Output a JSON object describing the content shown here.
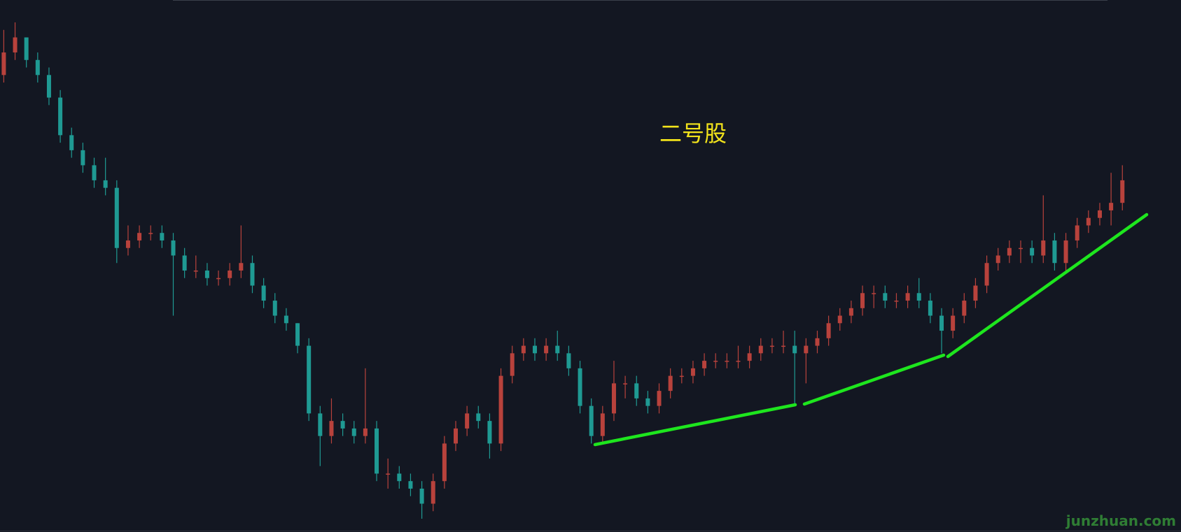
{
  "chart_data": {
    "type": "candlestick",
    "title": "二号股",
    "up_color": "#b8423c",
    "down_color": "#1f9a93",
    "ohlc": [
      [
        70,
        76,
        69,
        73
      ],
      [
        73,
        77,
        72,
        75
      ],
      [
        75,
        75,
        71,
        72
      ],
      [
        72,
        73,
        69,
        70
      ],
      [
        70,
        71,
        66,
        67
      ],
      [
        67,
        68,
        61,
        62
      ],
      [
        62,
        63,
        59,
        60
      ],
      [
        60,
        61,
        57,
        58
      ],
      [
        58,
        59,
        55,
        56
      ],
      [
        56,
        59,
        54,
        55
      ],
      [
        55,
        56,
        45,
        47
      ],
      [
        47,
        50,
        46,
        48
      ],
      [
        48,
        50,
        47,
        49
      ],
      [
        49,
        50,
        48,
        49
      ],
      [
        49,
        50,
        47,
        48
      ],
      [
        48,
        49,
        38,
        46
      ],
      [
        46,
        47,
        43,
        44
      ],
      [
        44,
        46,
        43,
        44
      ],
      [
        44,
        45,
        42,
        43
      ],
      [
        43,
        44,
        42,
        43
      ],
      [
        43,
        45,
        42,
        44
      ],
      [
        44,
        50,
        43,
        45
      ],
      [
        45,
        46,
        41,
        42
      ],
      [
        42,
        43,
        39,
        40
      ],
      [
        40,
        41,
        37,
        38
      ],
      [
        38,
        39,
        36,
        37
      ],
      [
        37,
        37,
        33,
        34
      ],
      [
        34,
        35,
        24,
        25
      ],
      [
        25,
        26,
        18,
        22
      ],
      [
        22,
        27,
        21,
        24
      ],
      [
        24,
        25,
        22,
        23
      ],
      [
        23,
        24,
        21,
        22
      ],
      [
        22,
        31,
        21,
        23
      ],
      [
        23,
        24,
        16,
        17
      ],
      [
        17,
        19,
        15,
        17
      ],
      [
        17,
        18,
        15,
        16
      ],
      [
        16,
        17,
        14,
        15
      ],
      [
        15,
        16,
        11,
        13
      ],
      [
        13,
        17,
        12,
        16
      ],
      [
        16,
        22,
        15,
        21
      ],
      [
        21,
        24,
        20,
        23
      ],
      [
        23,
        26,
        22,
        25
      ],
      [
        25,
        26,
        23,
        24
      ],
      [
        24,
        25,
        19,
        21
      ],
      [
        21,
        31,
        20,
        30
      ],
      [
        30,
        34,
        29,
        33
      ],
      [
        33,
        35,
        32,
        34
      ],
      [
        34,
        35,
        32,
        33
      ],
      [
        33,
        35,
        32,
        34
      ],
      [
        34,
        36,
        32,
        33
      ],
      [
        33,
        34,
        30,
        31
      ],
      [
        31,
        32,
        25,
        26
      ],
      [
        26,
        27,
        21,
        22
      ],
      [
        22,
        26,
        21,
        25
      ],
      [
        25,
        32,
        24,
        29
      ],
      [
        29,
        30,
        27,
        29
      ],
      [
        29,
        30,
        26,
        27
      ],
      [
        27,
        28,
        25,
        26
      ],
      [
        26,
        29,
        25,
        28
      ],
      [
        28,
        31,
        27,
        30
      ],
      [
        30,
        31,
        29,
        30
      ],
      [
        30,
        32,
        29,
        31
      ],
      [
        31,
        33,
        30,
        32
      ],
      [
        32,
        33,
        31,
        32
      ],
      [
        32,
        33,
        31,
        32
      ],
      [
        32,
        34,
        31,
        32
      ],
      [
        32,
        34,
        31,
        33
      ],
      [
        33,
        35,
        32,
        34
      ],
      [
        34,
        35,
        33,
        34
      ],
      [
        34,
        36,
        33,
        34
      ],
      [
        34,
        36,
        26,
        33
      ],
      [
        33,
        35,
        29,
        34
      ],
      [
        34,
        36,
        33,
        35
      ],
      [
        35,
        38,
        34,
        37
      ],
      [
        37,
        39,
        36,
        38
      ],
      [
        38,
        40,
        37,
        39
      ],
      [
        39,
        42,
        38,
        41
      ],
      [
        41,
        42,
        39,
        41
      ],
      [
        41,
        42,
        39,
        40
      ],
      [
        40,
        41,
        39,
        40
      ],
      [
        40,
        42,
        39,
        41
      ],
      [
        41,
        43,
        39,
        40
      ],
      [
        40,
        41,
        37,
        38
      ],
      [
        38,
        39,
        33,
        36
      ],
      [
        36,
        39,
        35,
        38
      ],
      [
        38,
        41,
        37,
        40
      ],
      [
        40,
        43,
        39,
        42
      ],
      [
        42,
        46,
        41,
        45
      ],
      [
        45,
        47,
        44,
        46
      ],
      [
        46,
        48,
        45,
        47
      ],
      [
        47,
        48,
        45,
        47
      ],
      [
        47,
        48,
        45,
        46
      ],
      [
        46,
        54,
        45,
        48
      ],
      [
        48,
        49,
        44,
        45
      ],
      [
        45,
        49,
        44,
        48
      ],
      [
        48,
        51,
        47,
        50
      ],
      [
        50,
        52,
        49,
        51
      ],
      [
        51,
        53,
        50,
        52
      ],
      [
        52,
        57,
        50,
        53
      ],
      [
        53,
        58,
        52,
        56
      ]
    ]
  },
  "watermark": "junzhuan.com"
}
